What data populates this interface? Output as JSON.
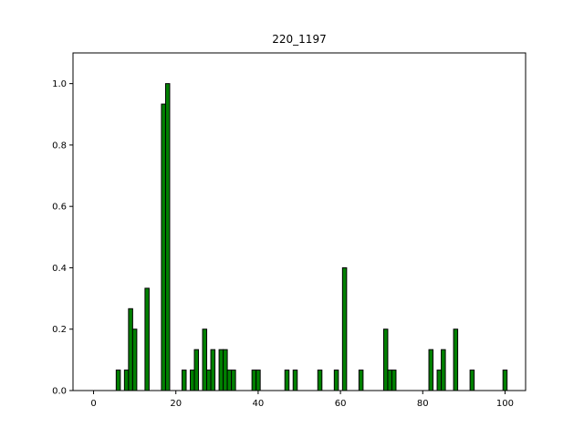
{
  "chart_data": {
    "type": "bar",
    "title": "220_1197",
    "xlabel": "",
    "ylabel": "",
    "xlim": [
      -5,
      105
    ],
    "ylim": [
      0,
      1.1
    ],
    "x_ticks": [
      0,
      20,
      40,
      60,
      80,
      100
    ],
    "y_ticks": [
      0.0,
      0.2,
      0.4,
      0.6,
      0.8,
      1.0
    ],
    "x_tick_labels": [
      "0",
      "20",
      "40",
      "60",
      "80",
      "100"
    ],
    "y_tick_labels": [
      "0.0",
      "0.2",
      "0.4",
      "0.6",
      "0.8",
      "1.0"
    ],
    "grid": false,
    "bar_width": 1,
    "bar_color": "#008000",
    "bar_edge_color": "#000000",
    "bars": [
      {
        "x": 6,
        "y": 0.0667
      },
      {
        "x": 8,
        "y": 0.0667
      },
      {
        "x": 9,
        "y": 0.2667
      },
      {
        "x": 10,
        "y": 0.2
      },
      {
        "x": 13,
        "y": 0.3333
      },
      {
        "x": 17,
        "y": 0.9333
      },
      {
        "x": 18,
        "y": 1.0
      },
      {
        "x": 22,
        "y": 0.0667
      },
      {
        "x": 24,
        "y": 0.0667
      },
      {
        "x": 25,
        "y": 0.1333
      },
      {
        "x": 27,
        "y": 0.2
      },
      {
        "x": 28,
        "y": 0.0667
      },
      {
        "x": 29,
        "y": 0.1333
      },
      {
        "x": 31,
        "y": 0.1333
      },
      {
        "x": 32,
        "y": 0.1333
      },
      {
        "x": 33,
        "y": 0.0667
      },
      {
        "x": 34,
        "y": 0.0667
      },
      {
        "x": 39,
        "y": 0.0667
      },
      {
        "x": 40,
        "y": 0.0667
      },
      {
        "x": 47,
        "y": 0.0667
      },
      {
        "x": 49,
        "y": 0.0667
      },
      {
        "x": 55,
        "y": 0.0667
      },
      {
        "x": 59,
        "y": 0.0667
      },
      {
        "x": 61,
        "y": 0.4
      },
      {
        "x": 65,
        "y": 0.0667
      },
      {
        "x": 71,
        "y": 0.2
      },
      {
        "x": 72,
        "y": 0.0667
      },
      {
        "x": 73,
        "y": 0.0667
      },
      {
        "x": 82,
        "y": 0.1333
      },
      {
        "x": 84,
        "y": 0.0667
      },
      {
        "x": 85,
        "y": 0.1333
      },
      {
        "x": 88,
        "y": 0.2
      },
      {
        "x": 92,
        "y": 0.0667
      },
      {
        "x": 100,
        "y": 0.0667
      }
    ]
  }
}
